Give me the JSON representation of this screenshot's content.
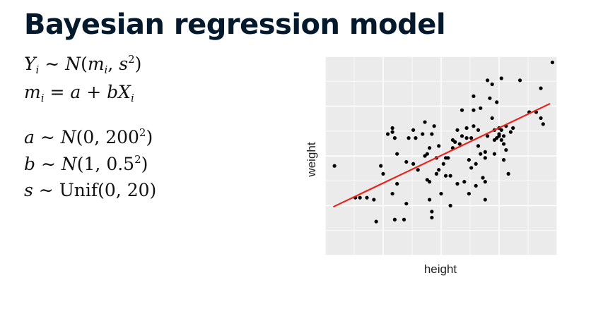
{
  "slide": {
    "title": "Bayesian regression model"
  },
  "model": {
    "likelihood": {
      "lhs": "Y",
      "lhs_sub": "i",
      "dist": "N",
      "mean": "m",
      "mean_sub": "i",
      "sd": "s",
      "sd_power": "2"
    },
    "mean_eq": {
      "lhs": "m",
      "lhs_sub": "i",
      "a": "a",
      "b": "b",
      "x": "X",
      "x_sub": "i"
    },
    "prior_a": {
      "param": "a",
      "dist": "N",
      "mean": "0",
      "sd": "200",
      "sd_power": "2"
    },
    "prior_b": {
      "param": "b",
      "dist": "N",
      "mean": "1",
      "sd": "0.5",
      "sd_power": "2"
    },
    "prior_s": {
      "param": "s",
      "dist": "Unif",
      "low": "0",
      "high": "20"
    }
  },
  "chart_data": {
    "type": "scatter",
    "xlabel": "height",
    "ylabel": "weight",
    "xlim": [
      0,
      100
    ],
    "ylim": [
      0,
      100
    ],
    "tick_labels_shown": false,
    "grid": true,
    "panel_background": "#ebebeb",
    "grid_color": "#ffffff",
    "point_color": "#000000",
    "line_color": "#e8251b",
    "regression_line": {
      "x": [
        3.5,
        97
      ],
      "y": [
        24.4,
        76.3
      ]
    },
    "points": [
      [
        4,
        45
      ],
      [
        13,
        29
      ],
      [
        15,
        29
      ],
      [
        18,
        29
      ],
      [
        21,
        28
      ],
      [
        24,
        45
      ],
      [
        22,
        17
      ],
      [
        25,
        41
      ],
      [
        27,
        61
      ],
      [
        29,
        64
      ],
      [
        29,
        62
      ],
      [
        29,
        31
      ],
      [
        30,
        59
      ],
      [
        30,
        18
      ],
      [
        31,
        51
      ],
      [
        31,
        36
      ],
      [
        34,
        18
      ],
      [
        35,
        26
      ],
      [
        35,
        47
      ],
      [
        36,
        59
      ],
      [
        38,
        63
      ],
      [
        39,
        59
      ],
      [
        38,
        46
      ],
      [
        40,
        43
      ],
      [
        42,
        61
      ],
      [
        43,
        67
      ],
      [
        43,
        50
      ],
      [
        44,
        51
      ],
      [
        44,
        38
      ],
      [
        45,
        28
      ],
      [
        46,
        22
      ],
      [
        45,
        54
      ],
      [
        45,
        37
      ],
      [
        46,
        19
      ],
      [
        46,
        61
      ],
      [
        47,
        65
      ],
      [
        48,
        49
      ],
      [
        48,
        41
      ],
      [
        49,
        55
      ],
      [
        49,
        43
      ],
      [
        50,
        31
      ],
      [
        51,
        46
      ],
      [
        52,
        49
      ],
      [
        52,
        40
      ],
      [
        53,
        49
      ],
      [
        54,
        40
      ],
      [
        54,
        25
      ],
      [
        55,
        54
      ],
      [
        55,
        58
      ],
      [
        56,
        57
      ],
      [
        57,
        36
      ],
      [
        57,
        63
      ],
      [
        58,
        56
      ],
      [
        59,
        60
      ],
      [
        59,
        73
      ],
      [
        60,
        37
      ],
      [
        61,
        59
      ],
      [
        61,
        64
      ],
      [
        62,
        48
      ],
      [
        62,
        31
      ],
      [
        63,
        44
      ],
      [
        63,
        59
      ],
      [
        64,
        65
      ],
      [
        64,
        73
      ],
      [
        64,
        80
      ],
      [
        65,
        35
      ],
      [
        65,
        46
      ],
      [
        66,
        55
      ],
      [
        66,
        63
      ],
      [
        67,
        74
      ],
      [
        67,
        51
      ],
      [
        68,
        39
      ],
      [
        69,
        52
      ],
      [
        69,
        49
      ],
      [
        69,
        37
      ],
      [
        69,
        28
      ],
      [
        70,
        60
      ],
      [
        70,
        88
      ],
      [
        71,
        79
      ],
      [
        72,
        86
      ],
      [
        72,
        69
      ],
      [
        73,
        63
      ],
      [
        73,
        51
      ],
      [
        73,
        58
      ],
      [
        74,
        59
      ],
      [
        74,
        77
      ],
      [
        75,
        61
      ],
      [
        75,
        60
      ],
      [
        75,
        64
      ],
      [
        76,
        89
      ],
      [
        76,
        63
      ],
      [
        76,
        58
      ],
      [
        77,
        60
      ],
      [
        77,
        48
      ],
      [
        77,
        56
      ],
      [
        78,
        53
      ],
      [
        78,
        65
      ],
      [
        79,
        41
      ],
      [
        80,
        62
      ],
      [
        81,
        64
      ],
      [
        84,
        88
      ],
      [
        88,
        72
      ],
      [
        91,
        72
      ],
      [
        93,
        69
      ],
      [
        93,
        84
      ],
      [
        94,
        66
      ],
      [
        98,
        97
      ]
    ]
  }
}
